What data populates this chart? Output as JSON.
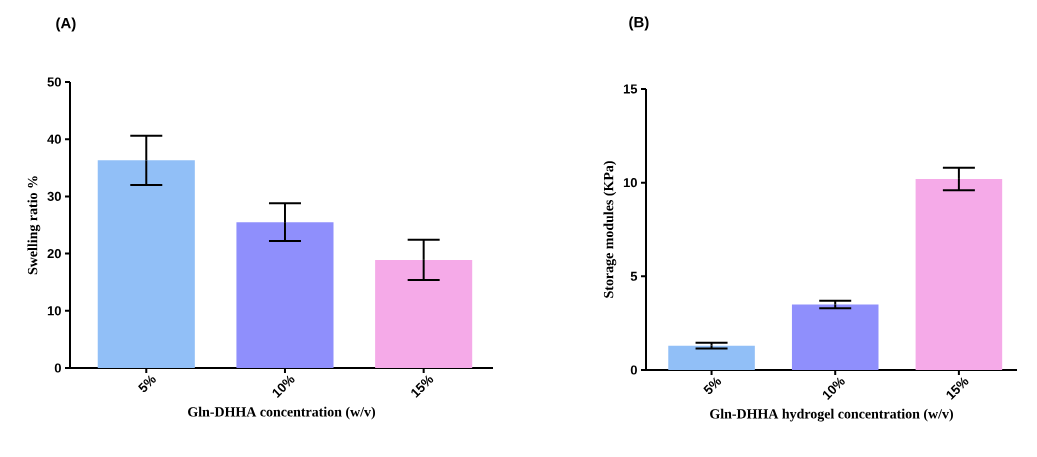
{
  "chart_data": [
    {
      "type": "bar",
      "title": "(A)",
      "xlabel": "Gln-DHHA concentration (w/v)",
      "ylabel": "Swelling ratio %",
      "categories": [
        "5%",
        "10%",
        "15%"
      ],
      "values": [
        36.3,
        25.5,
        18.9
      ],
      "errors": [
        4.3,
        3.3,
        3.5
      ],
      "colors": [
        "#91bff7",
        "#8f8ffc",
        "#f5aae8"
      ],
      "ylim": [
        0,
        50
      ],
      "yticks": [
        0,
        10,
        20,
        30,
        40,
        50
      ]
    },
    {
      "type": "bar",
      "title": "(B)",
      "xlabel": "Gln-DHHA hydrogel concentration (w/v)",
      "ylabel": "Storage modules (KPa)",
      "categories": [
        "5%",
        "10%",
        "15%"
      ],
      "values": [
        1.3,
        3.5,
        10.2
      ],
      "errors": [
        0.15,
        0.2,
        0.6
      ],
      "colors": [
        "#91bff7",
        "#8f8ffc",
        "#f5aae8"
      ],
      "ylim": [
        0,
        15
      ],
      "yticks": [
        0,
        5,
        10,
        15
      ]
    }
  ]
}
